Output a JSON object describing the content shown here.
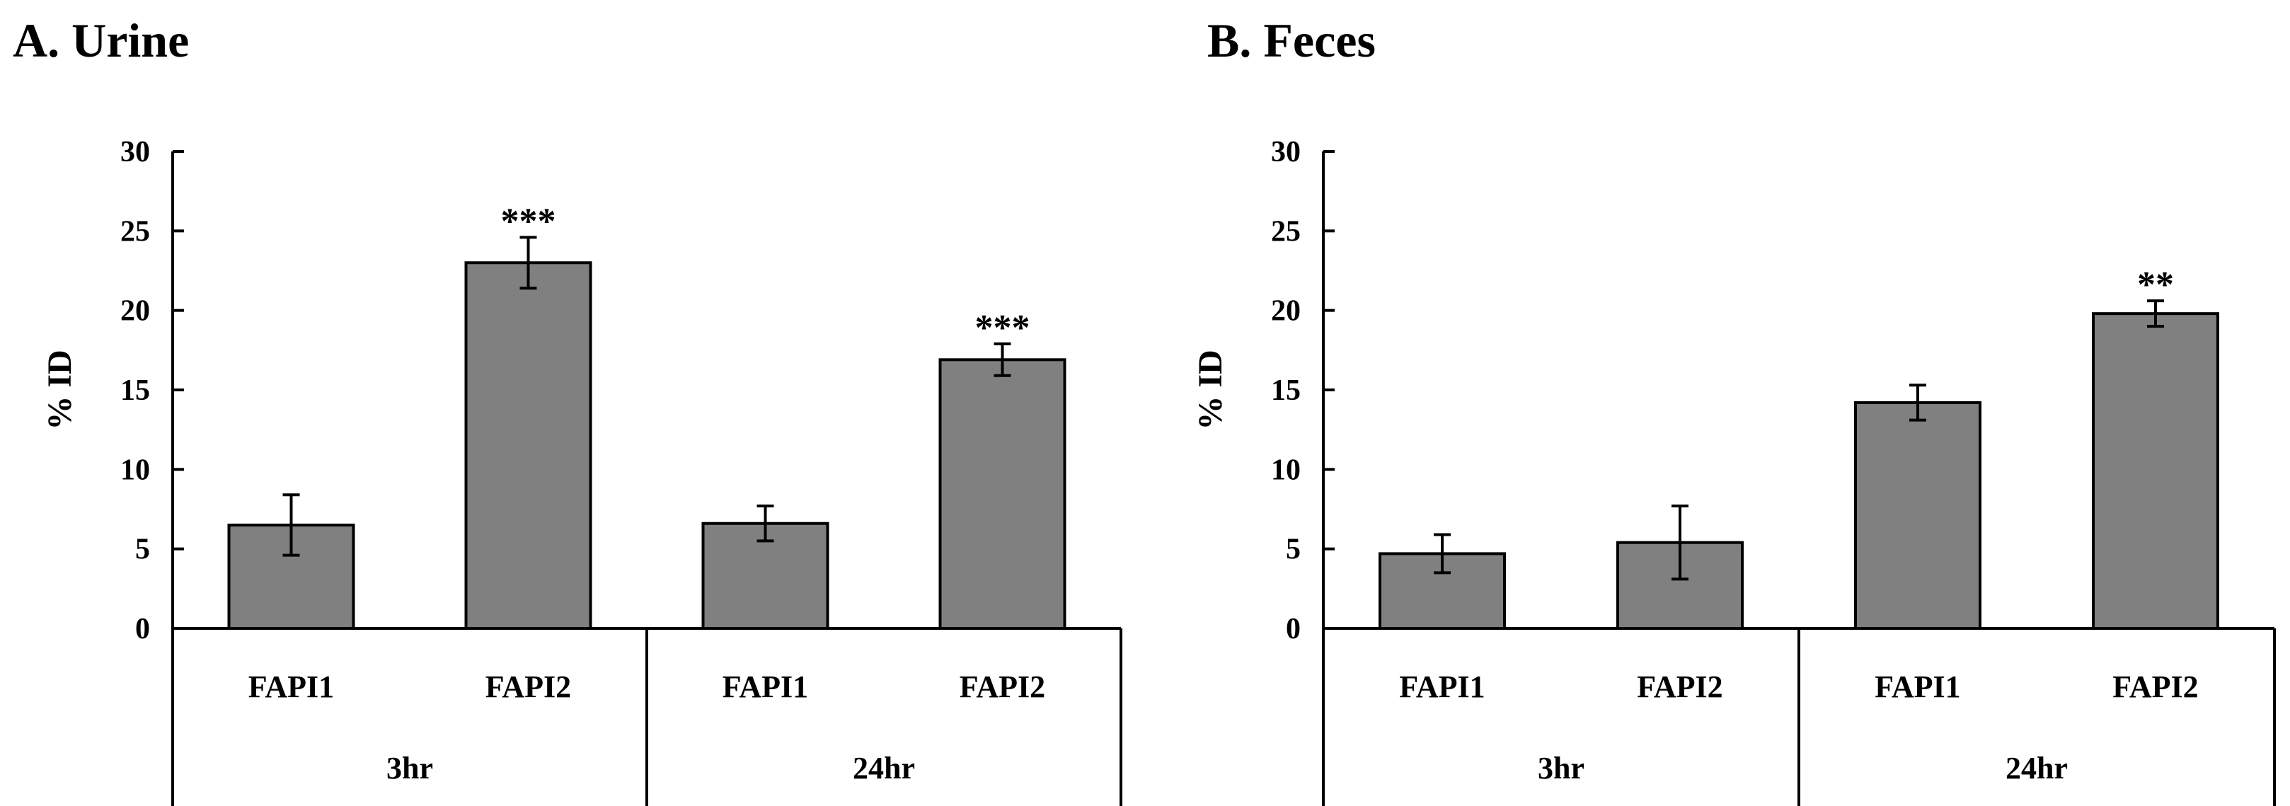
{
  "chart_data": [
    {
      "type": "bar",
      "title": "A. Urine",
      "ylabel": "% ID",
      "xlabel": "",
      "ylim": [
        0,
        30
      ],
      "yticks": [
        "0",
        "5",
        "10",
        "15",
        "20",
        "25",
        "30"
      ],
      "groups": [
        {
          "label": "3hr",
          "bars": [
            {
              "category": "FAPI1",
              "value": 6.5,
              "error": 1.9,
              "sig": ""
            },
            {
              "category": "FAPI2",
              "value": 23.0,
              "error": 1.6,
              "sig": "***"
            }
          ]
        },
        {
          "label": "24hr",
          "bars": [
            {
              "category": "FAPI1",
              "value": 6.6,
              "error": 1.1,
              "sig": ""
            },
            {
              "category": "FAPI2",
              "value": 16.9,
              "error": 1.0,
              "sig": "***"
            }
          ]
        }
      ]
    },
    {
      "type": "bar",
      "title": "B. Feces",
      "ylabel": "% ID",
      "xlabel": "",
      "ylim": [
        0,
        30
      ],
      "yticks": [
        "0",
        "5",
        "10",
        "15",
        "20",
        "25",
        "30"
      ],
      "groups": [
        {
          "label": "3hr",
          "bars": [
            {
              "category": "FAPI1",
              "value": 4.7,
              "error": 1.2,
              "sig": ""
            },
            {
              "category": "FAPI2",
              "value": 5.4,
              "error": 2.3,
              "sig": ""
            }
          ]
        },
        {
          "label": "24hr",
          "bars": [
            {
              "category": "FAPI1",
              "value": 14.2,
              "error": 1.1,
              "sig": ""
            },
            {
              "category": "FAPI2",
              "value": 19.8,
              "error": 0.8,
              "sig": "**"
            }
          ]
        }
      ]
    }
  ]
}
